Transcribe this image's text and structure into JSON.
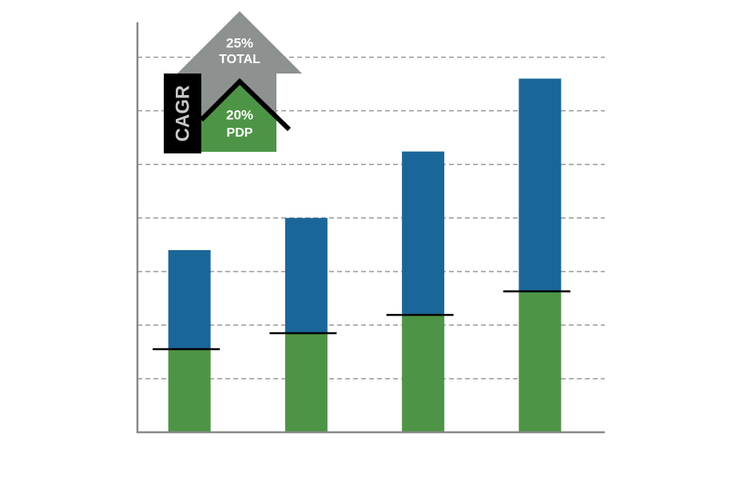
{
  "chart_data": {
    "type": "stacked_bar",
    "categories": [
      null,
      null,
      null,
      null
    ],
    "series": [
      {
        "color": "#4e9446",
        "values": [
          1.55,
          1.85,
          2.19,
          2.63
        ]
      },
      {
        "color": "#1b6699",
        "values": [
          1.85,
          2.15,
          3.05,
          3.97
        ]
      }
    ],
    "ylim": [
      0,
      7.65
    ],
    "yticks": [
      1,
      2,
      3,
      4,
      5,
      6,
      7
    ],
    "grid": true,
    "annotations": [
      "25%",
      "TOTAL",
      "20%",
      "PDP",
      "CAGR"
    ]
  }
}
